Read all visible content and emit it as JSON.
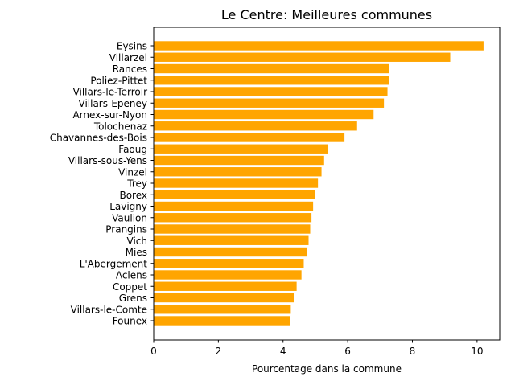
{
  "chart_data": {
    "type": "bar",
    "orientation": "horizontal",
    "title": "Le Centre: Meilleures communes",
    "xlabel": "Pourcentage dans la commune",
    "ylabel": "",
    "xlim": [
      0,
      10.7
    ],
    "xticks": [
      0,
      2,
      4,
      6,
      8,
      10
    ],
    "xtick_labels": [
      "0",
      "2",
      "4",
      "6",
      "8",
      "10"
    ],
    "grid": false,
    "legend": "none",
    "bar_color": "#FFA500",
    "categories": [
      "Eysins",
      "Villarzel",
      "Rances",
      "Poliez-Pittet",
      "Villars-le-Terroir",
      "Villars-Epeney",
      "Arnex-sur-Nyon",
      "Tolochenaz",
      "Chavannes-des-Bois",
      "Faoug",
      "Villars-sous-Yens",
      "Vinzel",
      "Trey",
      "Borex",
      "Lavigny",
      "Vaulion",
      "Prangins",
      "Vich",
      "Mies",
      "L'Abergement",
      "Aclens",
      "Coppet",
      "Grens",
      "Villars-le-Comte",
      "Founex"
    ],
    "values": [
      10.2,
      9.17,
      7.29,
      7.27,
      7.23,
      7.12,
      6.8,
      6.29,
      5.9,
      5.4,
      5.27,
      5.19,
      5.08,
      4.99,
      4.93,
      4.88,
      4.84,
      4.79,
      4.73,
      4.64,
      4.57,
      4.42,
      4.33,
      4.24,
      4.21
    ]
  }
}
